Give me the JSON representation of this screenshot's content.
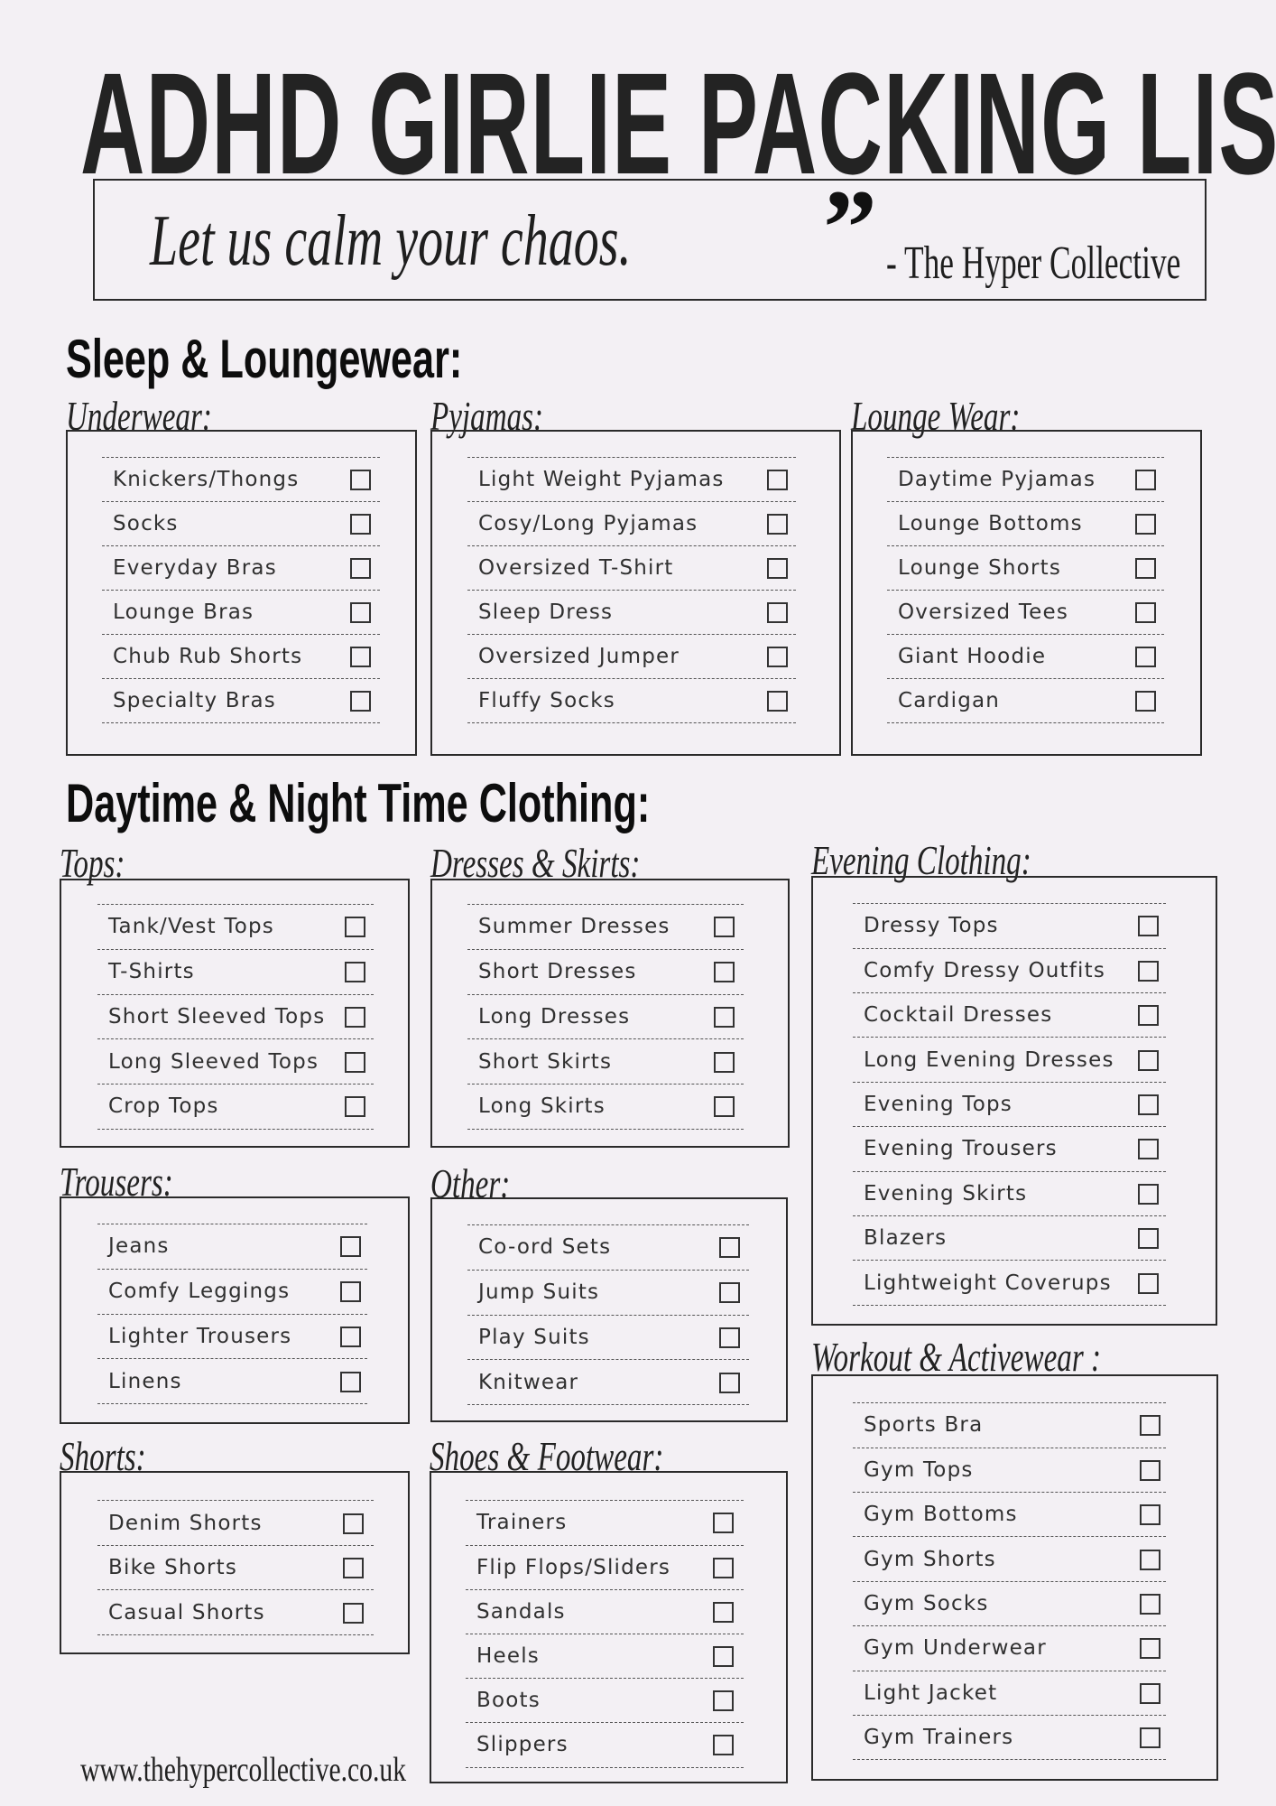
{
  "header": {
    "title": "ADHD GIRLIE PACKING LIST",
    "tagline": "Let us calm your chaos.",
    "quote_mark": "”",
    "attribution": "- The Hyper Collective"
  },
  "section_titles": [
    "Sleep & Loungewear:",
    "Daytime & Night Time Clothing:"
  ],
  "lists": [
    {
      "heading": "Underwear:",
      "items": [
        "Knickers/Thongs",
        "Socks",
        "Everyday Bras",
        "Lounge Bras",
        "Chub Rub Shorts",
        "Specialty Bras"
      ]
    },
    {
      "heading": "Pyjamas:",
      "items": [
        "Light Weight Pyjamas",
        "Cosy/Long Pyjamas",
        "Oversized T-Shirt",
        "Sleep Dress",
        "Oversized Jumper",
        "Fluffy Socks"
      ]
    },
    {
      "heading": "Lounge Wear:",
      "items": [
        "Daytime Pyjamas",
        "Lounge Bottoms",
        "Lounge Shorts",
        "Oversized Tees",
        "Giant Hoodie",
        "Cardigan"
      ]
    },
    {
      "heading": "Tops:",
      "items": [
        "Tank/Vest Tops",
        "T-Shirts",
        "Short Sleeved Tops",
        "Long Sleeved Tops",
        "Crop Tops"
      ]
    },
    {
      "heading": "Dresses & Skirts:",
      "items": [
        "Summer Dresses",
        "Short Dresses",
        "Long Dresses",
        "Short Skirts",
        "Long Skirts"
      ]
    },
    {
      "heading": "Evening Clothing:",
      "items": [
        "Dressy Tops",
        "Comfy Dressy Outfits",
        "Cocktail Dresses",
        "Long Evening Dresses",
        "Evening Tops",
        "Evening Trousers",
        "Evening Skirts",
        "Blazers",
        "Lightweight Coverups"
      ]
    },
    {
      "heading": "Trousers:",
      "items": [
        "Jeans",
        "Comfy Leggings",
        "Lighter Trousers",
        "Linens"
      ]
    },
    {
      "heading": "Other:",
      "items": [
        "Co-ord Sets",
        "Jump Suits",
        "Play Suits",
        "Knitwear"
      ]
    },
    {
      "heading": "Shorts:",
      "items": [
        "Denim Shorts",
        "Bike Shorts",
        "Casual Shorts"
      ]
    },
    {
      "heading": "Shoes & Footwear:",
      "items": [
        "Trainers",
        "Flip Flops/Sliders",
        "Sandals",
        "Heels",
        "Boots",
        "Slippers"
      ]
    },
    {
      "heading": "Workout & Activewear :",
      "items": [
        "Sports Bra",
        "Gym Tops",
        "Gym Bottoms",
        "Gym Shorts",
        "Gym Socks",
        "Gym Underwear",
        "Light Jacket",
        "Gym Trainers"
      ]
    }
  ],
  "checkbox_state": "unchecked",
  "footer": {
    "website": "www.thehypercollective.co.uk"
  },
  "colors": {
    "background": "#f3f0f4",
    "ink": "#2b2b2b"
  }
}
